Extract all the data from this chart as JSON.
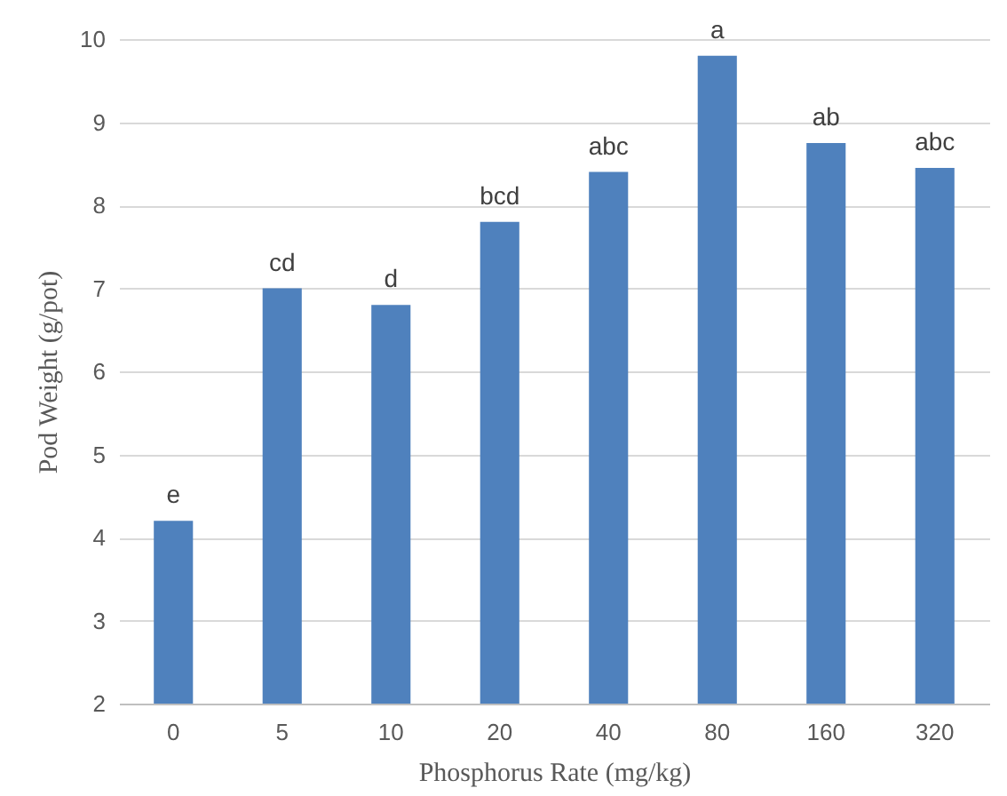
{
  "chart_data": {
    "type": "bar",
    "xlabel": "Phosphorus Rate (mg/kg)",
    "ylabel": "Pod Weight (g/pot)",
    "categories": [
      "0",
      "5",
      "10",
      "20",
      "40",
      "80",
      "160",
      "320"
    ],
    "values": [
      4.2,
      7.0,
      6.8,
      7.8,
      8.4,
      9.8,
      8.75,
      8.45
    ],
    "color": "#4f81bd",
    "ylim": [
      2,
      10
    ],
    "yticks": [
      2,
      3,
      4,
      5,
      6,
      7,
      8,
      9,
      10
    ],
    "grid": "y",
    "annotations": [
      {
        "text": "e",
        "x": "0",
        "y": 4.2
      },
      {
        "text": "cd",
        "x": "5",
        "y": 7.0
      },
      {
        "text": "d",
        "x": "10",
        "y": 6.8
      },
      {
        "text": "bcd",
        "x": "20",
        "y": 7.8
      },
      {
        "text": "abc",
        "x": "40",
        "y": 8.4
      },
      {
        "text": "a",
        "x": "80",
        "y": 9.8
      },
      {
        "text": "ab",
        "x": "160",
        "y": 8.75
      },
      {
        "text": "abc",
        "x": "320",
        "y": 8.45
      }
    ]
  }
}
